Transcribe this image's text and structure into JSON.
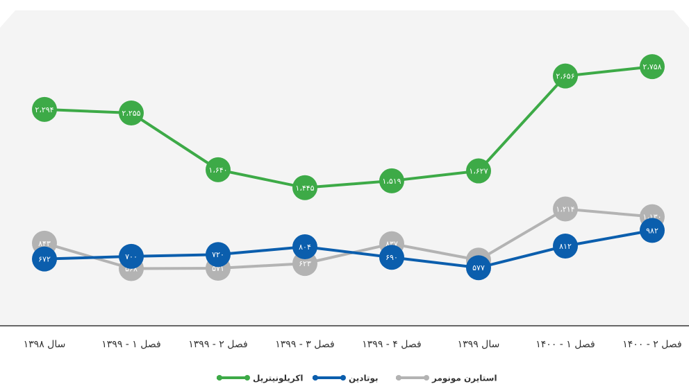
{
  "chart_data": {
    "type": "line",
    "categories": [
      "سال ۱۳۹۸",
      "فصل ۱ - ۱۳۹۹",
      "فصل ۲ - ۱۳۹۹",
      "فصل ۳ - ۱۳۹۹",
      "فصل ۴ - ۱۳۹۹",
      "سال ۱۳۹۹",
      "فصل ۱ - ۱۴۰۰",
      "فصل ۲ - ۱۴۰۰"
    ],
    "series": [
      {
        "name": "اکریلونیتریل",
        "color": "#3daa47",
        "values": [
          2294,
          2255,
          1640,
          1445,
          1519,
          1627,
          2656,
          2758
        ],
        "value_labels": [
          "۲،۲۹۴",
          "۲،۲۵۵",
          "۱،۶۴۰",
          "۱،۴۴۵",
          "۱،۵۱۹",
          "۱،۶۲۷",
          "۲،۶۵۶",
          "۲،۷۵۸"
        ]
      },
      {
        "name": "استایرن مونومر",
        "color": "#b3b3b3",
        "values": [
          843,
          568,
          571,
          623,
          837,
          660,
          1214,
          1130
        ],
        "value_labels": [
          "۸۴۳",
          "۵۶۸",
          "۵۷۱",
          "۶۲۳",
          "۸۳۷",
          "۶۶۰",
          "۱،۲۱۴",
          "۱،۱۳۰"
        ]
      },
      {
        "name": "بوتادین",
        "color": "#0b5ead",
        "values": [
          672,
          700,
          720,
          804,
          690,
          577,
          812,
          982
        ],
        "value_labels": [
          "۶۷۲",
          "۷۰۰",
          "۷۲۰",
          "۸۰۴",
          "۶۹۰",
          "۵۷۷",
          "۸۱۲",
          "۹۸۲"
        ]
      }
    ],
    "ylim": [
      0,
      3300
    ]
  }
}
